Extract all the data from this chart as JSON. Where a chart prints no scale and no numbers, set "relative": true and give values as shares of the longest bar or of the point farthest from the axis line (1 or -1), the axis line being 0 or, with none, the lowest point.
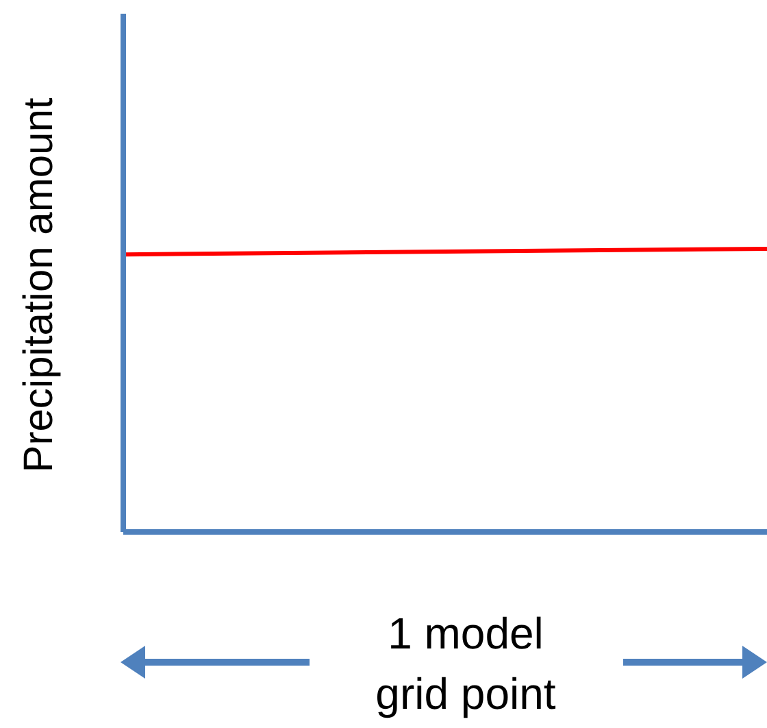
{
  "chart_data": {
    "type": "line",
    "relative": true,
    "ylabel": "Precipitation amount",
    "xlabel": "1 model grid point",
    "categories": [
      null,
      null
    ],
    "series": [
      {
        "color": "#ff0000",
        "values": [
          0.98,
          1
        ]
      }
    ],
    "marker": "none"
  }
}
